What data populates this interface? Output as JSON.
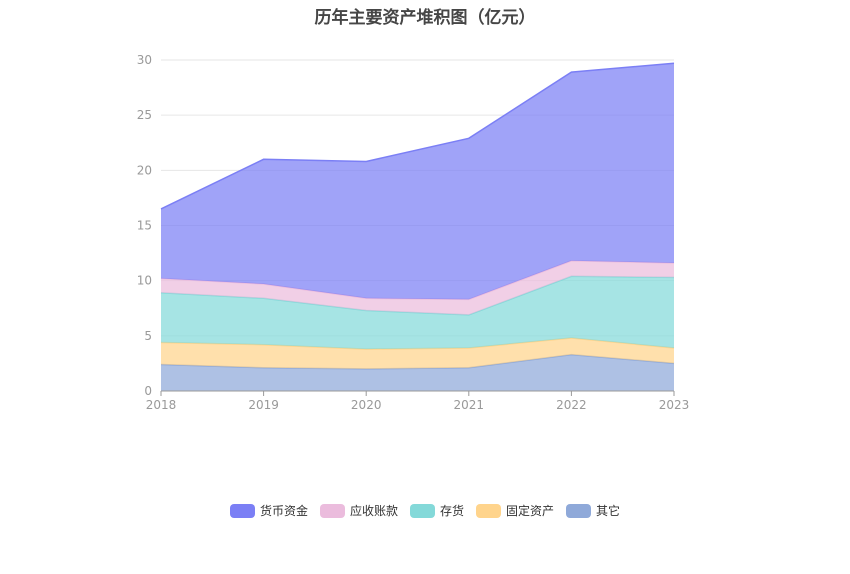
{
  "chart_data": {
    "type": "area",
    "stacked": true,
    "title": "历年主要资产堆积图（亿元）",
    "x": [
      "2018",
      "2019",
      "2020",
      "2021",
      "2022",
      "2023"
    ],
    "ylim": [
      0,
      30
    ],
    "yticks": [
      "0",
      "5",
      "10",
      "15",
      "20",
      "25",
      "30"
    ],
    "grid": true,
    "legend_position": "bottom",
    "series": [
      {
        "name": "其它",
        "color": "#8fa9d9",
        "values": [
          2.4,
          2.1,
          2.0,
          2.1,
          3.3,
          2.5
        ]
      },
      {
        "name": "固定资产",
        "color": "#ffd48c",
        "values": [
          2.0,
          2.1,
          1.8,
          1.8,
          1.5,
          1.4
        ]
      },
      {
        "name": "存货",
        "color": "#84d9d9",
        "values": [
          4.5,
          4.2,
          3.5,
          3.0,
          5.6,
          6.4
        ]
      },
      {
        "name": "应收账款",
        "color": "#ebbcdd",
        "values": [
          1.3,
          1.3,
          1.1,
          1.4,
          1.4,
          1.3
        ]
      },
      {
        "name": "货币资金",
        "color": "#7b7ff5",
        "values": [
          6.3,
          11.3,
          12.4,
          14.6,
          17.1,
          18.1
        ]
      }
    ],
    "legend_order": [
      "货币资金",
      "应收账款",
      "存货",
      "固定资产",
      "其它"
    ]
  }
}
